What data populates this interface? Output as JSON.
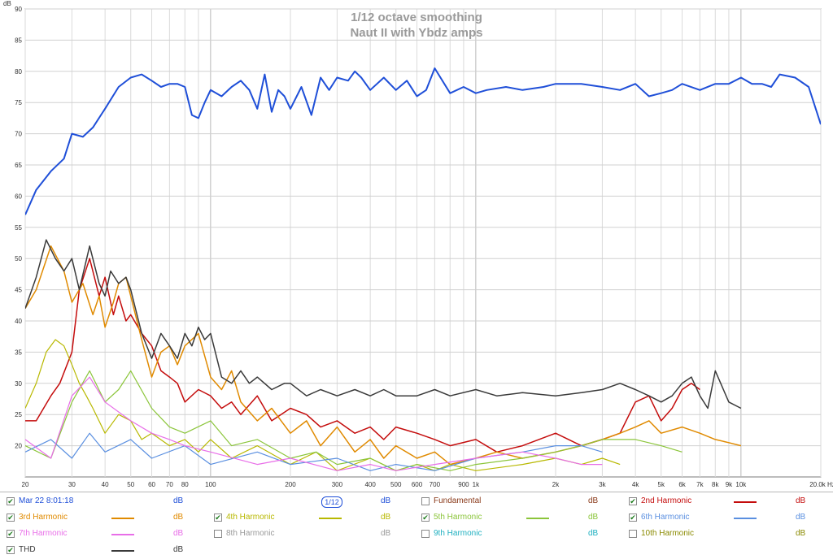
{
  "chart_data": {
    "type": "line",
    "title": "1/12 octave smoothing",
    "subtitle": "Naut II with Ybdz amps",
    "ylabel": "dB",
    "xlabel": "",
    "x_unit": "Hz",
    "x_scale": "log",
    "xlim": [
      20,
      20000
    ],
    "ylim": [
      15,
      90
    ],
    "grid": true,
    "y_ticks": [
      20,
      25,
      30,
      35,
      40,
      45,
      50,
      55,
      60,
      65,
      70,
      75,
      80,
      85,
      90
    ],
    "x_ticks": [
      {
        "v": 20,
        "t": "20"
      },
      {
        "v": 30,
        "t": "30"
      },
      {
        "v": 40,
        "t": "40"
      },
      {
        "v": 50,
        "t": "50"
      },
      {
        "v": 60,
        "t": "60"
      },
      {
        "v": 70,
        "t": "70"
      },
      {
        "v": 80,
        "t": "80"
      },
      {
        "v": 100,
        "t": "100"
      },
      {
        "v": 200,
        "t": "200"
      },
      {
        "v": 300,
        "t": "300"
      },
      {
        "v": 400,
        "t": "400"
      },
      {
        "v": 500,
        "t": "500"
      },
      {
        "v": 600,
        "t": "600"
      },
      {
        "v": 700,
        "t": "700"
      },
      {
        "v": 900,
        "t": "900"
      },
      {
        "v": 1000,
        "t": "1k"
      },
      {
        "v": 2000,
        "t": "2k"
      },
      {
        "v": 3000,
        "t": "3k"
      },
      {
        "v": 4000,
        "t": "4k"
      },
      {
        "v": 5000,
        "t": "5k"
      },
      {
        "v": 6000,
        "t": "6k"
      },
      {
        "v": 7000,
        "t": "7k"
      },
      {
        "v": 8000,
        "t": "8k"
      },
      {
        "v": 9000,
        "t": "9k"
      },
      {
        "v": 10000,
        "t": "10k"
      },
      {
        "v": 20000,
        "t": "20.0k Hz"
      }
    ],
    "series": [
      {
        "name": "Mar 22 8:01:18",
        "color": "#1f4fd8",
        "width": 2,
        "x": [
          20,
          22,
          25,
          28,
          30,
          33,
          36,
          40,
          45,
          50,
          55,
          60,
          65,
          70,
          75,
          80,
          85,
          90,
          95,
          100,
          110,
          120,
          130,
          140,
          150,
          160,
          170,
          180,
          190,
          200,
          220,
          240,
          260,
          280,
          300,
          330,
          350,
          370,
          400,
          450,
          500,
          550,
          600,
          650,
          700,
          800,
          900,
          1000,
          1100,
          1300,
          1500,
          1800,
          2000,
          2500,
          3000,
          3500,
          4000,
          4500,
          5000,
          5500,
          6000,
          7000,
          8000,
          9000,
          10000,
          11000,
          12000,
          13000,
          14000,
          16000,
          18000,
          20000
        ],
        "y": [
          57,
          61,
          64,
          66,
          70,
          69.5,
          71,
          74,
          77.5,
          79,
          79.5,
          78.5,
          77.5,
          78,
          78,
          77.5,
          73,
          72.5,
          75,
          77,
          76,
          77.5,
          78.5,
          77,
          74,
          79.5,
          73.5,
          77,
          76,
          74,
          77.5,
          73,
          79,
          77,
          79,
          78.5,
          80,
          79,
          77,
          79,
          77,
          78.5,
          76,
          77,
          80.5,
          76.5,
          77.5,
          76.5,
          77,
          77.5,
          77,
          77.5,
          78,
          78,
          77.5,
          77,
          78,
          76,
          76.5,
          77,
          78,
          77,
          78,
          78,
          79,
          78,
          78,
          77.5,
          79.5,
          79,
          77.5,
          71.5
        ]
      },
      {
        "name": "2nd Harmonic",
        "color": "#c40c0c",
        "width": 1.5,
        "x": [
          20,
          22,
          25,
          27,
          30,
          32,
          35,
          38,
          40,
          43,
          45,
          48,
          50,
          55,
          60,
          65,
          70,
          75,
          80,
          90,
          100,
          110,
          120,
          130,
          150,
          170,
          200,
          230,
          260,
          300,
          350,
          400,
          450,
          500,
          600,
          700,
          800,
          1000,
          1200,
          1500,
          2000,
          2500,
          3000,
          3500,
          4000,
          4500,
          5000,
          5500,
          6000,
          6500,
          7000
        ],
        "y": [
          24,
          24,
          28,
          30,
          35,
          45,
          50,
          44,
          47,
          41,
          44,
          40,
          41,
          38,
          36,
          32,
          31,
          30,
          27,
          29,
          28,
          26,
          27,
          25,
          28,
          24,
          26,
          25,
          23,
          24,
          22,
          23,
          21,
          23,
          22,
          21,
          20,
          21,
          19,
          20,
          22,
          20,
          21,
          22,
          27,
          28,
          24,
          26,
          29,
          30,
          29
        ]
      },
      {
        "name": "3rd Harmonic",
        "color": "#e08a00",
        "width": 1.5,
        "x": [
          20,
          22,
          25,
          28,
          30,
          33,
          36,
          38,
          40,
          43,
          45,
          48,
          50,
          55,
          60,
          65,
          70,
          75,
          80,
          90,
          100,
          110,
          120,
          130,
          150,
          170,
          200,
          230,
          260,
          300,
          350,
          400,
          450,
          500,
          600,
          700,
          800,
          1000,
          1200,
          1500,
          2000,
          2500,
          3000,
          3500,
          4000,
          4500,
          5000,
          6000,
          7000,
          8000,
          9000,
          10000
        ],
        "y": [
          42,
          45,
          52,
          48,
          43,
          46,
          41,
          44,
          39,
          43,
          46,
          47,
          44,
          37,
          31,
          35,
          36,
          33,
          36,
          38,
          31,
          29,
          32,
          27,
          24,
          26,
          22,
          24,
          20,
          23,
          19,
          21,
          18,
          20,
          18,
          19,
          17,
          18,
          19,
          18,
          19,
          20,
          21,
          22,
          23,
          24,
          22,
          23,
          22,
          21,
          20.5,
          20
        ]
      },
      {
        "name": "4th Harmonic",
        "color": "#b8b800",
        "width": 1.2,
        "x": [
          20,
          22,
          24,
          26,
          28,
          30,
          32,
          34,
          36,
          40,
          45,
          50,
          55,
          60,
          70,
          80,
          90,
          100,
          120,
          150,
          200,
          250,
          300,
          400,
          500,
          600,
          700,
          800,
          1000,
          1500,
          2000,
          2500,
          3000,
          3500
        ],
        "y": [
          26,
          30,
          35,
          37,
          36,
          33,
          30,
          28,
          26,
          22,
          25,
          24,
          21,
          22,
          20,
          21,
          19,
          21,
          18,
          20,
          17,
          19,
          16,
          18,
          16,
          17,
          16,
          17,
          16,
          17,
          18,
          17,
          18,
          17
        ]
      },
      {
        "name": "5th Harmonic",
        "color": "#8bc53a",
        "width": 1.2,
        "x": [
          20,
          25,
          30,
          35,
          40,
          45,
          50,
          60,
          70,
          80,
          100,
          120,
          150,
          200,
          250,
          300,
          400,
          500,
          600,
          800,
          1000,
          1500,
          2000,
          2500,
          3000,
          4000,
          5000,
          6000
        ],
        "y": [
          20,
          18,
          27,
          32,
          27,
          29,
          32,
          26,
          23,
          22,
          24,
          20,
          21,
          18,
          19,
          17,
          18,
          16,
          17,
          16,
          17,
          18,
          19,
          20,
          21,
          21,
          20,
          19
        ]
      },
      {
        "name": "6th Harmonic",
        "color": "#5a8fe0",
        "width": 1.2,
        "x": [
          20,
          25,
          30,
          35,
          40,
          50,
          60,
          80,
          100,
          150,
          200,
          300,
          400,
          500,
          700,
          1000,
          1500,
          2000,
          2500,
          3000
        ],
        "y": [
          19,
          21,
          18,
          22,
          19,
          21,
          18,
          20,
          17,
          19,
          17,
          18,
          16,
          17,
          16,
          18,
          19,
          20,
          20,
          19
        ]
      },
      {
        "name": "7th Harmonic",
        "color": "#e86ee8",
        "width": 1.2,
        "x": [
          20,
          25,
          30,
          35,
          40,
          50,
          60,
          70,
          80,
          100,
          150,
          200,
          300,
          400,
          500,
          700,
          1000,
          1500,
          2000,
          2500,
          3000
        ],
        "y": [
          21,
          18,
          28,
          31,
          27,
          24,
          22,
          21,
          20,
          19,
          17,
          18,
          16,
          17,
          16,
          17,
          18,
          19,
          18,
          17,
          17
        ]
      },
      {
        "name": "THD",
        "color": "#3a3a3a",
        "width": 1.5,
        "x": [
          20,
          22,
          24,
          26,
          28,
          30,
          32,
          35,
          38,
          40,
          42,
          45,
          48,
          50,
          55,
          60,
          65,
          70,
          75,
          80,
          85,
          90,
          95,
          100,
          110,
          120,
          130,
          140,
          150,
          170,
          190,
          200,
          230,
          260,
          300,
          350,
          400,
          450,
          500,
          600,
          700,
          800,
          1000,
          1200,
          1500,
          2000,
          2500,
          3000,
          3500,
          4000,
          4500,
          5000,
          5500,
          6000,
          6500,
          7000,
          7500,
          8000,
          9000,
          10000
        ],
        "y": [
          42,
          47,
          53,
          50,
          48,
          50,
          45,
          52,
          46,
          44,
          48,
          46,
          47,
          45,
          38,
          34,
          38,
          36,
          34,
          38,
          36,
          39,
          37,
          38,
          31,
          30,
          32,
          30,
          31,
          29,
          30,
          30,
          28,
          29,
          28,
          29,
          28,
          29,
          28,
          28,
          29,
          28,
          29,
          28,
          28.5,
          28,
          28.5,
          29,
          30,
          29,
          28,
          27,
          28,
          30,
          31,
          28,
          26,
          32,
          27,
          26
        ]
      }
    ]
  },
  "legend": {
    "unit_label": "dB",
    "items": [
      {
        "name": "Mar 22 8:01:18",
        "color": "#1f4fd8",
        "checked": true
      },
      {
        "name": "1/12",
        "color": "#1f4fd8",
        "checked": false,
        "is_smoothing": true
      },
      {
        "name": "Fundamental",
        "color": "#8a3a1a",
        "checked": false
      },
      {
        "name": "2nd Harmonic",
        "color": "#c40c0c",
        "checked": true
      },
      {
        "name": "3rd Harmonic",
        "color": "#e08a00",
        "checked": true
      },
      {
        "name": "4th Harmonic",
        "color": "#b8b800",
        "checked": true
      },
      {
        "name": "5th Harmonic",
        "color": "#8bc53a",
        "checked": true
      },
      {
        "name": "6th Harmonic",
        "color": "#5a8fe0",
        "checked": true
      },
      {
        "name": "7th Harmonic",
        "color": "#e86ee8",
        "checked": true
      },
      {
        "name": "8th Harmonic",
        "color": "#9a9a9a",
        "checked": false
      },
      {
        "name": "9th Harmonic",
        "color": "#20b0c0",
        "checked": false
      },
      {
        "name": "10th Harmonic",
        "color": "#8a8a00",
        "checked": false
      },
      {
        "name": "THD",
        "color": "#3a3a3a",
        "checked": true
      }
    ]
  }
}
